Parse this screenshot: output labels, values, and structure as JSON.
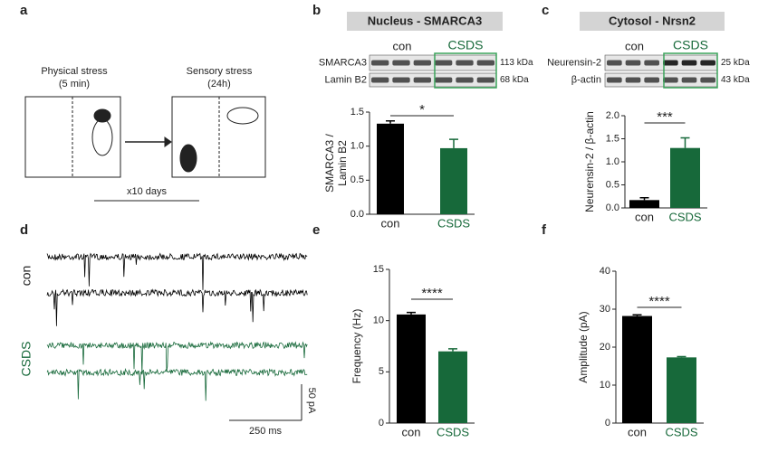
{
  "panels": [
    "a",
    "b",
    "c",
    "d",
    "e",
    "f"
  ],
  "diagram": {
    "left_title": [
      "Physical stress",
      "(5 min)"
    ],
    "right_title": [
      "Sensory stress",
      "(24h)"
    ],
    "repeat": "x10 days"
  },
  "blots": [
    {
      "title": "Nucleus - SMARCA3",
      "groups": [
        "con",
        "CSDS"
      ],
      "rows": [
        "SMARCA3",
        "Lamin B2"
      ],
      "sizes": [
        "113 kDa",
        "68 kDa"
      ]
    },
    {
      "title": "Cytosol - Nrsn2",
      "groups": [
        "con",
        "CSDS"
      ],
      "rows": [
        "Neurensin-2",
        "β-actin"
      ],
      "sizes": [
        "25 kDa",
        "43 kDa"
      ]
    }
  ],
  "traces": {
    "groups": [
      "con",
      "CSDS"
    ],
    "scale_y": "50 pA",
    "scale_x": "250 ms"
  },
  "chart_data": [
    {
      "type": "bar",
      "ylabel": [
        "SMARCA3 /",
        "Lamin B2"
      ],
      "categories": [
        "con",
        "CSDS"
      ],
      "values": [
        1.33,
        0.97
      ],
      "errors": [
        0.04,
        0.13
      ],
      "colors": [
        "#000000",
        "#17693a"
      ],
      "ylim": [
        0,
        1.5
      ],
      "yticks": [
        {
          "value": 0,
          "label": "0.0"
        },
        {
          "value": 0.5,
          "label": "0.5"
        },
        {
          "value": 1,
          "label": "1.0"
        },
        {
          "value": 1.5,
          "label": "1.5"
        }
      ],
      "significance": "*"
    },
    {
      "type": "bar",
      "ylabel": [
        "Neurensin-2 / β-actin"
      ],
      "categories": [
        "con",
        "CSDS"
      ],
      "values": [
        0.17,
        1.3
      ],
      "errors": [
        0.05,
        0.22
      ],
      "colors": [
        "#000000",
        "#17693a"
      ],
      "ylim": [
        0,
        2
      ],
      "yticks": [
        {
          "value": 0,
          "label": "0.0"
        },
        {
          "value": 0.5,
          "label": "0.5"
        },
        {
          "value": 1,
          "label": "1.0"
        },
        {
          "value": 1.5,
          "label": "1.5"
        },
        {
          "value": 2,
          "label": "2.0"
        }
      ],
      "significance": "***"
    },
    {
      "type": "bar",
      "ylabel": [
        "Frequency (Hz)"
      ],
      "categories": [
        "con",
        "CSDS"
      ],
      "values": [
        10.6,
        7.0
      ],
      "errors": [
        0.2,
        0.25
      ],
      "colors": [
        "#000000",
        "#17693a"
      ],
      "ylim": [
        0,
        15
      ],
      "yticks": [
        0,
        5,
        10,
        15
      ],
      "significance": "****"
    },
    {
      "type": "bar",
      "ylabel": [
        "Amplitude (pA)"
      ],
      "categories": [
        "con",
        "CSDS"
      ],
      "values": [
        28.2,
        17.3
      ],
      "errors": [
        0.3,
        0.2
      ],
      "colors": [
        "#000000",
        "#17693a"
      ],
      "ylim": [
        0,
        40
      ],
      "yticks": [
        0,
        10,
        20,
        30,
        40
      ],
      "significance": "****"
    }
  ]
}
